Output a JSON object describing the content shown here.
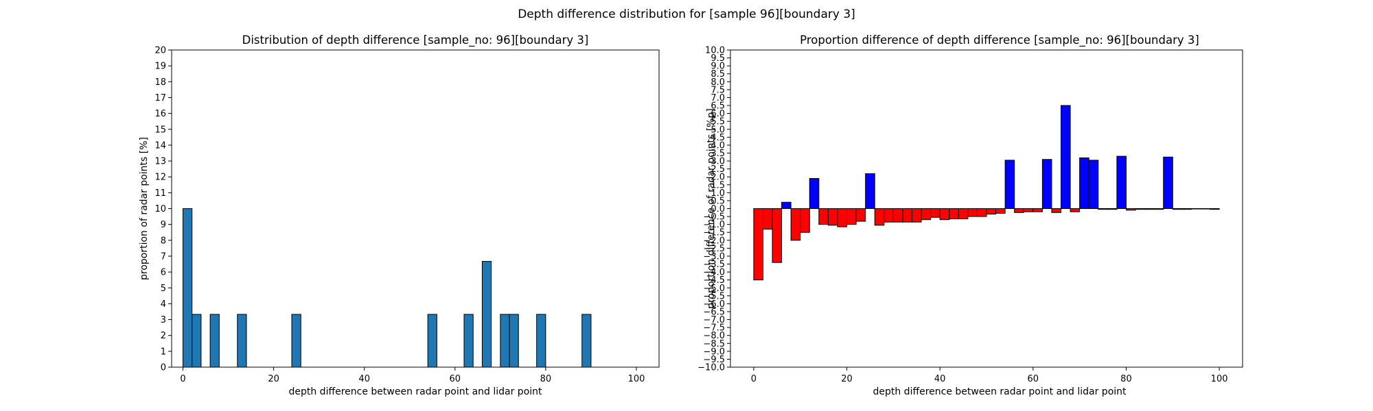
{
  "figure": {
    "suptitle": "Depth difference distribution for [sample 96][boundary 3]"
  },
  "chart_data": [
    {
      "type": "bar",
      "title": "Distribution of depth difference [sample_no: 96][boundary 3]",
      "xlabel": "depth difference between radar point and lidar point",
      "ylabel": "proportion of radar points [%]",
      "xlim": [
        -2.5,
        105
      ],
      "ylim": [
        0,
        20
      ],
      "xticks": [
        0,
        20,
        40,
        60,
        80,
        100
      ],
      "yticks": [
        0,
        1,
        2,
        3,
        4,
        5,
        6,
        7,
        8,
        9,
        10,
        11,
        12,
        13,
        14,
        15,
        16,
        17,
        18,
        19,
        20
      ],
      "ytick_decimals": 0,
      "bar_width": 2,
      "grid": false,
      "colors": {
        "bar": "#1f77b4",
        "edge": "#000000"
      },
      "x": [
        1,
        3,
        7,
        13,
        25,
        55,
        63,
        67,
        71,
        73,
        79,
        89
      ],
      "values": [
        10.0,
        3.33,
        3.33,
        3.33,
        3.33,
        3.33,
        3.33,
        6.67,
        3.33,
        3.33,
        3.33,
        3.33
      ]
    },
    {
      "type": "bar",
      "title": "Proportion difference of depth difference [sample_no: 96][boundary 3]",
      "xlabel": "depth difference between radar point and lidar point",
      "ylabel": "proportion difference of radar points [%p]",
      "xlim": [
        -5,
        105
      ],
      "ylim": [
        -10,
        10
      ],
      "xticks": [
        0,
        20,
        40,
        60,
        80,
        100
      ],
      "yticks": [
        -10.0,
        -9.5,
        -9.0,
        -8.5,
        -8.0,
        -7.5,
        -7.0,
        -6.5,
        -6.0,
        -5.5,
        -5.0,
        -4.5,
        -4.0,
        -3.5,
        -3.0,
        -2.5,
        -2.0,
        -1.5,
        -1.0,
        -0.5,
        0.0,
        0.5,
        1.0,
        1.5,
        2.0,
        2.5,
        3.0,
        3.5,
        4.0,
        4.5,
        5.0,
        5.5,
        6.0,
        6.5,
        7.0,
        7.5,
        8.0,
        8.5,
        9.0,
        9.5,
        10.0
      ],
      "ytick_decimals": 1,
      "bar_width": 2,
      "grid": false,
      "colors": {
        "positive": "#0000ff",
        "negative": "#ff0000",
        "edge": "#000000"
      },
      "x": [
        1,
        3,
        5,
        7,
        9,
        11,
        13,
        15,
        17,
        19,
        21,
        23,
        25,
        27,
        29,
        31,
        33,
        35,
        37,
        39,
        41,
        43,
        45,
        47,
        49,
        51,
        53,
        55,
        57,
        59,
        61,
        63,
        65,
        67,
        69,
        71,
        73,
        75,
        77,
        79,
        81,
        83,
        85,
        87,
        89,
        91,
        93,
        95,
        97,
        99
      ],
      "values": [
        -4.5,
        -1.3,
        -3.4,
        0.4,
        -2.0,
        -1.5,
        1.9,
        -1.0,
        -1.05,
        -1.15,
        -1.0,
        -0.8,
        2.2,
        -1.05,
        -0.85,
        -0.85,
        -0.85,
        -0.85,
        -0.7,
        -0.55,
        -0.7,
        -0.65,
        -0.65,
        -0.5,
        -0.5,
        -0.35,
        -0.3,
        3.05,
        -0.25,
        -0.2,
        -0.2,
        3.1,
        -0.25,
        6.5,
        -0.2,
        3.2,
        3.05,
        -0.05,
        -0.05,
        3.3,
        -0.1,
        -0.05,
        -0.05,
        -0.05,
        3.25,
        -0.05,
        -0.05,
        0.0,
        0.0,
        -0.05
      ]
    }
  ]
}
